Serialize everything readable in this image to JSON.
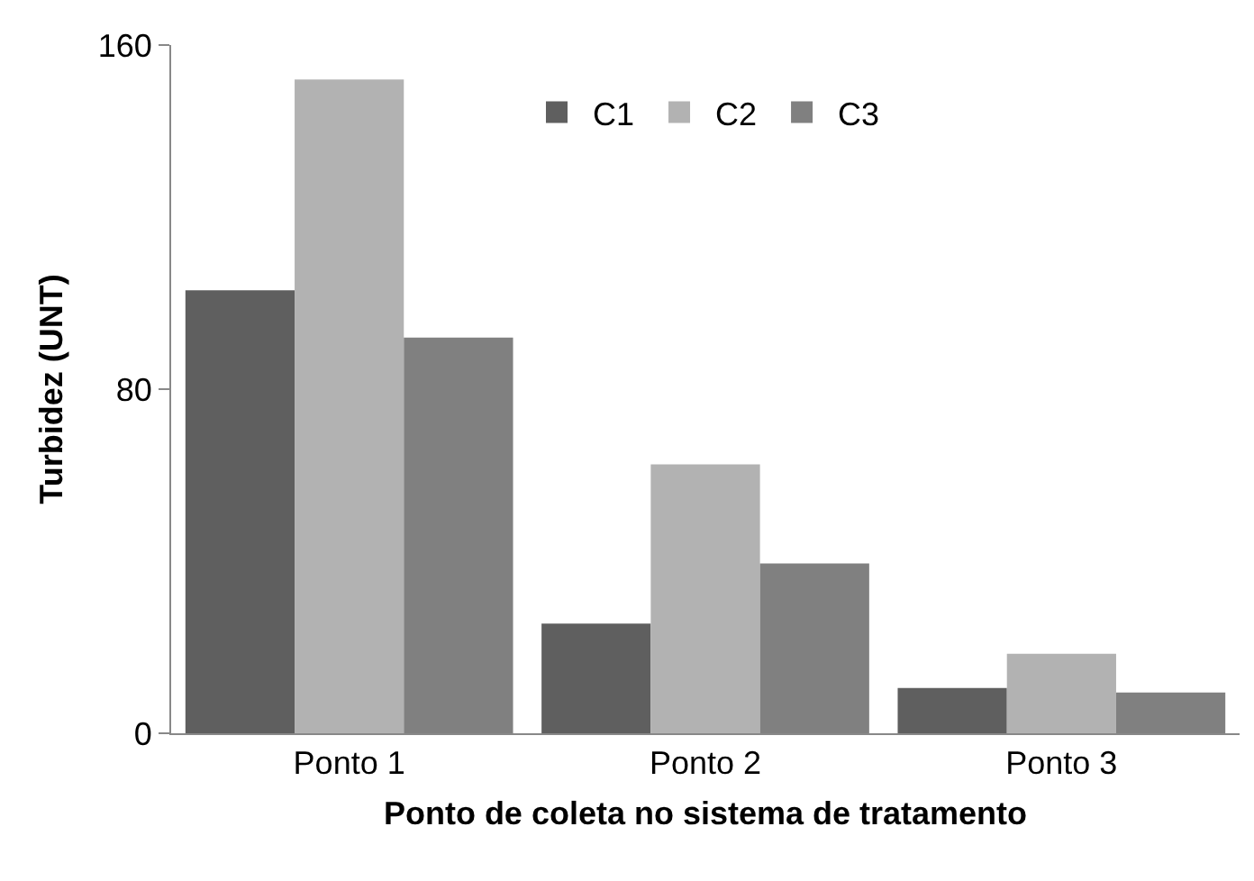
{
  "chart_data": {
    "type": "bar",
    "xlabel": "Ponto de coleta no sistema de tratamento",
    "ylabel": "Turbidez (UNT)",
    "categories": [
      "Ponto 1",
      "Ponto 2",
      "Ponto 3"
    ],
    "series": [
      {
        "name": "C1",
        "color": "#5f5f5f",
        "values": [
          103,
          25.5,
          10.5
        ]
      },
      {
        "name": "C2",
        "color": "#b2b2b2",
        "values": [
          152,
          62.5,
          18.5
        ]
      },
      {
        "name": "C3",
        "color": "#808080",
        "values": [
          92,
          39.5,
          9.5
        ]
      }
    ],
    "ylim": [
      0,
      160
    ],
    "yticks": [
      0,
      80,
      160
    ],
    "grid": false,
    "legend": "top"
  }
}
